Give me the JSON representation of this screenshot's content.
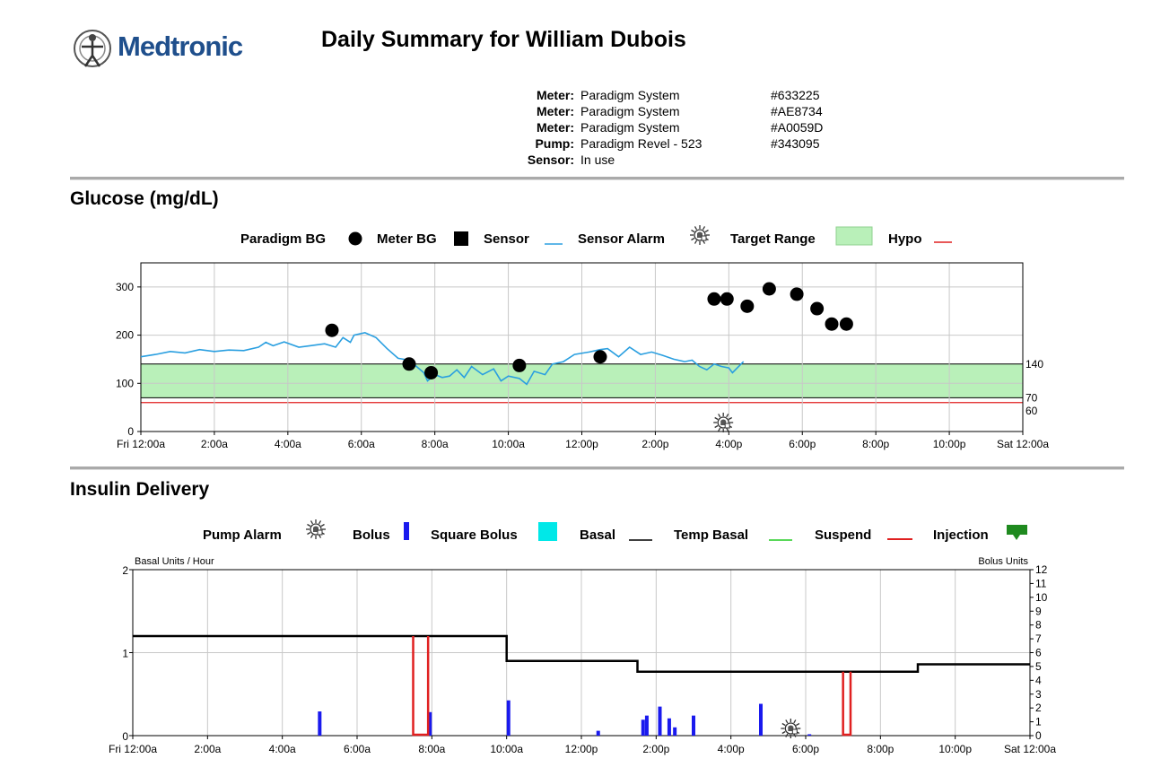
{
  "brand": "Medtronic",
  "title": "Daily Summary for William Dubois",
  "devices": [
    {
      "key": "Meter:",
      "name": "Paradigm System",
      "serial": "#633225"
    },
    {
      "key": "Meter:",
      "name": "Paradigm System",
      "serial": "#AE8734"
    },
    {
      "key": "Meter:",
      "name": "Paradigm System",
      "serial": "#A0059D"
    },
    {
      "key": "Pump:",
      "name": "Paradigm Revel - 523",
      "serial": "#343095"
    },
    {
      "key": "Sensor:",
      "name": "In use",
      "serial": ""
    }
  ],
  "glucose": {
    "heading": "Glucose (mg/dL)",
    "legend": {
      "paradigm_bg": "Paradigm BG",
      "meter_bg": "Meter BG",
      "sensor": "Sensor",
      "sensor_alarm": "Sensor Alarm",
      "target_range": "Target Range",
      "hypo": "Hypo"
    },
    "colors": {
      "sensor": "#2a9fe0",
      "target": "#b9f0b9",
      "hypo": "#e02020",
      "bg": "#000000"
    }
  },
  "insulin": {
    "heading": "Insulin Delivery",
    "left_axis_title": "Basal Units / Hour",
    "right_axis_title": "Bolus Units",
    "legend": {
      "pump_alarm": "Pump Alarm",
      "bolus": "Bolus",
      "square_bolus": "Square Bolus",
      "basal": "Basal",
      "temp_basal": "Temp Basal",
      "suspend": "Suspend",
      "injection": "Injection"
    },
    "colors": {
      "bolus": "#1a1aee",
      "square": "#00e8e8",
      "basal": "#000000",
      "temp": "#22cc22",
      "suspend": "#e02020",
      "injection": "#1f8a1f"
    }
  },
  "chart_data": [
    {
      "type": "line",
      "title": "Glucose (mg/dL)",
      "x_unit": "hours from Fri 12:00a",
      "xlim": [
        0,
        24
      ],
      "x_ticks": [
        "Fri 12:00a",
        "2:00a",
        "4:00a",
        "6:00a",
        "8:00a",
        "10:00a",
        "12:00p",
        "2:00p",
        "4:00p",
        "6:00p",
        "8:00p",
        "10:00p",
        "Sat 12:00a"
      ],
      "ylim": [
        0,
        350
      ],
      "y_ticks": [
        0,
        100,
        200,
        300
      ],
      "target_range": [
        70,
        140
      ],
      "hypo": 60,
      "right_labels": [
        "140",
        "70",
        "60"
      ],
      "sensor": [
        [
          0,
          155
        ],
        [
          0.4,
          160
        ],
        [
          0.8,
          166
        ],
        [
          1.2,
          163
        ],
        [
          1.6,
          170
        ],
        [
          2,
          166
        ],
        [
          2.4,
          169
        ],
        [
          2.8,
          168
        ],
        [
          3.2,
          175
        ],
        [
          3.4,
          185
        ],
        [
          3.6,
          178
        ],
        [
          3.9,
          186
        ],
        [
          4.3,
          175
        ],
        [
          4.6,
          178
        ],
        [
          5,
          182
        ],
        [
          5.3,
          175
        ],
        [
          5.5,
          195
        ],
        [
          5.7,
          185
        ],
        [
          5.8,
          200
        ],
        [
          6.1,
          205
        ],
        [
          6.4,
          195
        ],
        [
          6.7,
          172
        ],
        [
          7.0,
          152
        ],
        [
          7.3,
          148
        ],
        [
          7.5,
          135
        ],
        [
          7.7,
          122
        ],
        [
          7.8,
          105
        ],
        [
          8.0,
          118
        ],
        [
          8.2,
          112
        ],
        [
          8.4,
          115
        ],
        [
          8.6,
          128
        ],
        [
          8.8,
          112
        ],
        [
          9.0,
          135
        ],
        [
          9.3,
          118
        ],
        [
          9.6,
          130
        ],
        [
          9.8,
          105
        ],
        [
          10.0,
          115
        ],
        [
          10.3,
          110
        ],
        [
          10.5,
          98
        ],
        [
          10.7,
          125
        ],
        [
          11.0,
          118
        ],
        [
          11.2,
          140
        ],
        [
          11.5,
          145
        ],
        [
          11.8,
          160
        ],
        [
          12.2,
          165
        ],
        [
          12.5,
          170
        ],
        [
          12.7,
          172
        ],
        [
          13.0,
          155
        ],
        [
          13.3,
          175
        ],
        [
          13.6,
          160
        ],
        [
          13.9,
          165
        ],
        [
          14.2,
          158
        ],
        [
          14.5,
          150
        ],
        [
          14.8,
          145
        ],
        [
          15.0,
          148
        ],
        [
          15.2,
          135
        ],
        [
          15.4,
          128
        ],
        [
          15.6,
          140
        ],
        [
          15.8,
          135
        ],
        [
          16.0,
          132
        ],
        [
          16.1,
          122
        ],
        [
          16.4,
          145
        ]
      ],
      "paradigm_bg": [
        [
          5.2,
          210
        ],
        [
          7.3,
          140
        ],
        [
          7.9,
          122
        ],
        [
          10.3,
          137
        ],
        [
          12.5,
          155
        ],
        [
          15.6,
          275
        ],
        [
          15.95,
          275
        ],
        [
          16.5,
          260
        ],
        [
          17.1,
          296
        ],
        [
          17.85,
          285
        ],
        [
          18.4,
          255
        ],
        [
          18.8,
          223
        ],
        [
          19.2,
          223
        ]
      ],
      "sensor_alarm_x": [
        15.85
      ]
    },
    {
      "type": "line",
      "title": "Insulin Delivery",
      "x_unit": "hours from Fri 12:00a",
      "xlim": [
        0,
        24
      ],
      "x_ticks": [
        "Fri 12:00a",
        "2:00a",
        "4:00a",
        "6:00a",
        "8:00a",
        "10:00a",
        "12:00p",
        "2:00p",
        "4:00p",
        "6:00p",
        "8:00p",
        "10:00p",
        "Sat 12:00a"
      ],
      "left_ylim": [
        0,
        2
      ],
      "left_ticks": [
        0,
        1,
        2
      ],
      "right_ylim": [
        0,
        12
      ],
      "right_ticks": [
        0,
        1,
        2,
        3,
        4,
        5,
        6,
        7,
        8,
        9,
        10,
        11,
        12
      ],
      "basal": [
        [
          0,
          1.2
        ],
        [
          10.0,
          1.2
        ],
        [
          10.0,
          0.9
        ],
        [
          13.5,
          0.9
        ],
        [
          13.5,
          0.77
        ],
        [
          21.0,
          0.77
        ],
        [
          21.0,
          0.86
        ],
        [
          24,
          0.86
        ]
      ],
      "suspend": [
        [
          7.5,
          7.9
        ],
        [
          19.0,
          19.2
        ]
      ],
      "bolus": [
        [
          5.0,
          1.75
        ],
        [
          7.95,
          1.7
        ],
        [
          10.05,
          2.55
        ],
        [
          12.45,
          0.35
        ],
        [
          13.65,
          1.15
        ],
        [
          13.75,
          1.45
        ],
        [
          14.1,
          2.1
        ],
        [
          14.35,
          1.25
        ],
        [
          14.5,
          0.6
        ],
        [
          15.0,
          1.45
        ],
        [
          16.8,
          2.3
        ],
        [
          18.1,
          0.1
        ]
      ],
      "pump_alarm_x": [
        17.6
      ]
    }
  ]
}
